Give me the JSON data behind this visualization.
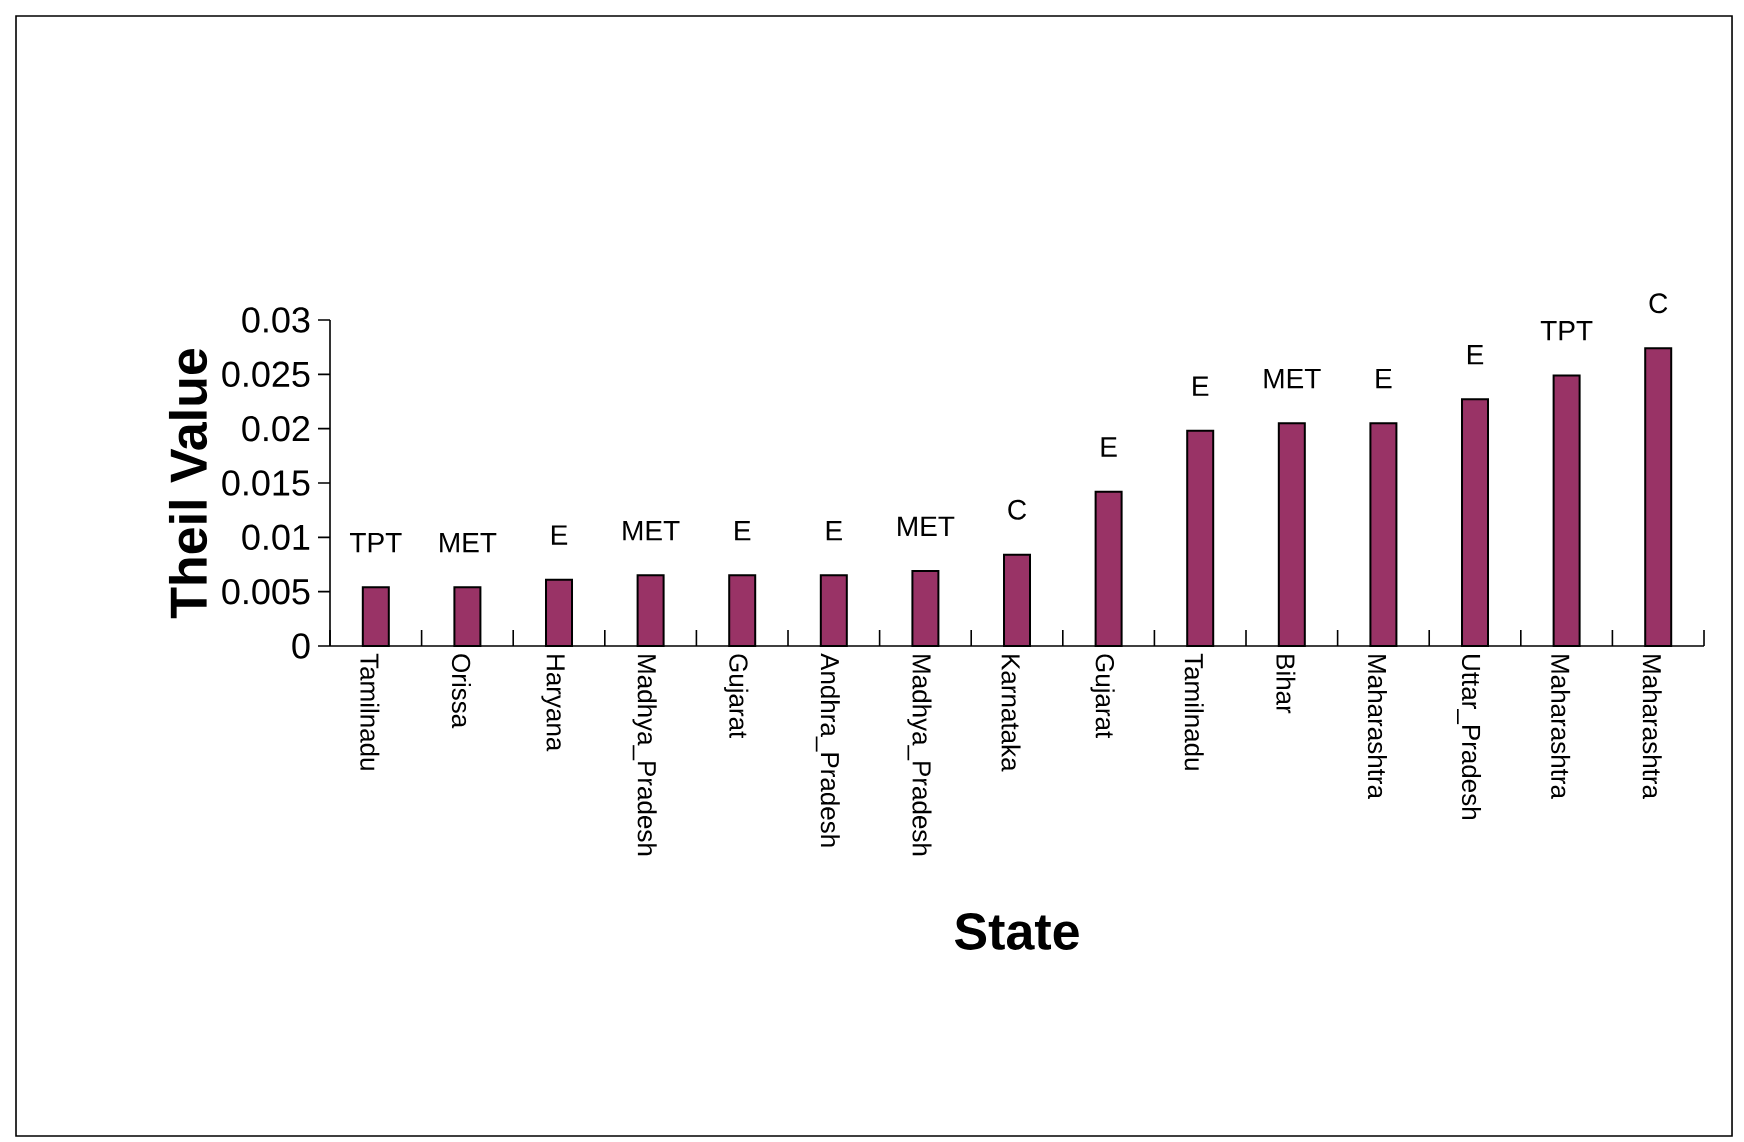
{
  "chart_data": {
    "type": "bar",
    "xlabel": "State",
    "ylabel": "Theil Value",
    "categories": [
      "Tamilnadu",
      "Orissa",
      "Haryana",
      "Madhya_Pradesh",
      "Gujarat",
      "Andhra_Pradesh",
      "Madhya_Pradesh",
      "Karnataka",
      "Gujarat",
      "Tamilnadu",
      "Bihar",
      "Maharashtra",
      "Uttar_Pradesh",
      "Maharashtra",
      "Maharashtra"
    ],
    "values": [
      0.0054,
      0.0054,
      0.0061,
      0.0065,
      0.0065,
      0.0065,
      0.0069,
      0.0084,
      0.0142,
      0.0198,
      0.0205,
      0.0205,
      0.0227,
      0.0249,
      0.0274
    ],
    "value_labels": [
      "TPT",
      "MET",
      "E",
      "MET",
      "E",
      "E",
      "MET",
      "C",
      "E",
      "E",
      "MET",
      "E",
      "E",
      "TPT",
      "C"
    ],
    "color": "#993366",
    "ylim": [
      0,
      0.03
    ],
    "yticks": [
      0,
      0.005,
      0.01,
      0.015,
      0.02,
      0.025,
      0.03
    ]
  }
}
